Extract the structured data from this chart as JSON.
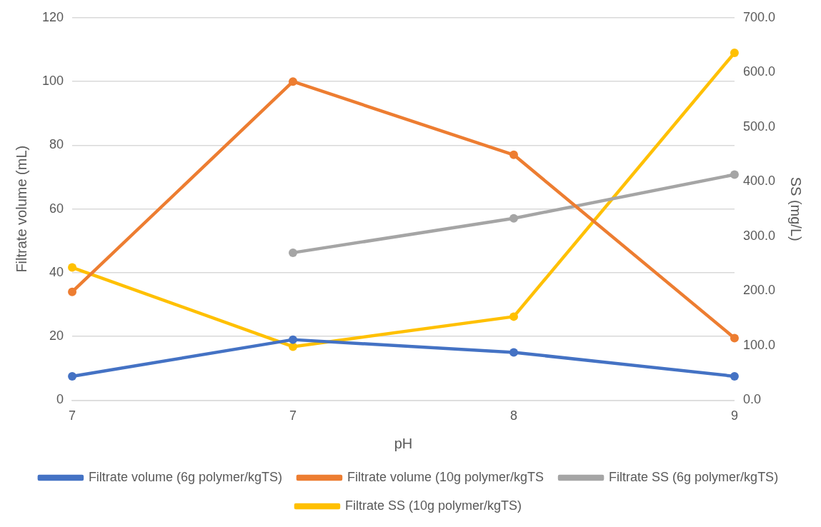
{
  "chart_data": {
    "type": "line",
    "xlabel": "pH",
    "ylabel": "Filtrate volume (mL)",
    "y2label": "SS (mg/L)",
    "categories": [
      "7",
      "7",
      "8",
      "9"
    ],
    "series": [
      {
        "name": "Filtrate volume (6g polymer/kgTS)",
        "color": "#4472c4",
        "values": [
          7.5,
          19,
          15,
          7.5
        ]
      },
      {
        "name": "Filtrate volume (10g polymer/kgTS",
        "color": "#ed7d31",
        "values": [
          34,
          100,
          77,
          19.5
        ]
      },
      {
        "name": "Filtrate SS (6g polymer/kgTS)",
        "color": "#a5a5a5",
        "axis": "y2",
        "values": [
          null,
          270,
          333,
          413
        ]
      },
      {
        "name": "Filtrate SS (10g polymer/kgTS)",
        "color": "#ffc000",
        "axis": "y2",
        "values": [
          243,
          98,
          153,
          636
        ]
      }
    ],
    "ylim": [
      0,
      120
    ],
    "yticks": [
      0,
      20,
      40,
      60,
      80,
      100,
      120
    ],
    "y2lim": [
      0,
      700
    ],
    "y2ticks": [
      {
        "value": 0,
        "label": "0.0"
      },
      {
        "value": 100,
        "label": "100.0"
      },
      {
        "value": 200,
        "label": "200.0"
      },
      {
        "value": 300,
        "label": "300.0"
      },
      {
        "value": 400,
        "label": "400.0"
      },
      {
        "value": 500,
        "label": "500.0"
      },
      {
        "value": 600,
        "label": "600.0"
      },
      {
        "value": 700,
        "label": "700.0"
      }
    ],
    "grid": "y",
    "legend": "bottom",
    "marker": "circle",
    "line_style": "solid"
  }
}
